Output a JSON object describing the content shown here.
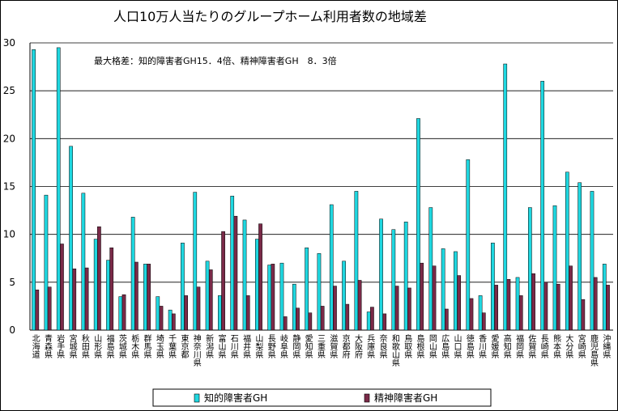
{
  "chart_data": {
    "type": "bar",
    "title": "人口10万人当たりのグループホーム利用者数の地域差",
    "annotation": "最大格差：知的障害者GH15．4倍、精神障害者GH　8．3倍",
    "ylim": [
      0,
      30
    ],
    "yticks": [
      0,
      5,
      10,
      15,
      20,
      25,
      30
    ],
    "grid": true,
    "legend_position": "bottom",
    "colors": {
      "intellectual": "#1fd7e0",
      "mental": "#7a2a48"
    },
    "categories": [
      "北海道",
      "青森県",
      "岩手県",
      "宮城県",
      "秋田県",
      "山形県",
      "福島県",
      "茨城県",
      "栃木県",
      "群馬県",
      "埼玉県",
      "千葉県",
      "東京都",
      "神奈川県",
      "新潟県",
      "富山県",
      "石川県",
      "福井県",
      "山梨県",
      "長野県",
      "岐阜県",
      "静岡県",
      "愛知県",
      "三重県",
      "滋賀県",
      "京都府",
      "大阪府",
      "兵庫県",
      "奈良県",
      "和歌山県",
      "鳥取県",
      "島根県",
      "岡山県",
      "広島県",
      "山口県",
      "徳島県",
      "香川県",
      "愛媛県",
      "高知県",
      "福岡県",
      "佐賀県",
      "長崎県",
      "熊本県",
      "大分県",
      "宮崎県",
      "鹿児島県",
      "沖縄県"
    ],
    "series": [
      {
        "name": "知的障害者GH",
        "values": [
          29.3,
          14.1,
          29.5,
          19.2,
          14.3,
          9.5,
          7.3,
          3.5,
          11.8,
          6.9,
          3.5,
          2.1,
          9.1,
          14.4,
          7.2,
          3.6,
          14.0,
          11.5,
          9.5,
          6.8,
          7.0,
          4.8,
          8.6,
          8.0,
          13.1,
          7.2,
          14.5,
          1.9,
          11.6,
          10.5,
          11.3,
          22.1,
          12.8,
          8.5,
          8.2,
          17.8,
          3.6,
          9.1,
          27.8,
          5.5,
          12.8,
          26.0,
          13.0,
          16.5,
          15.4,
          14.5,
          6.9
        ]
      },
      {
        "name": "精神障害者GH",
        "values": [
          4.2,
          4.5,
          9.0,
          6.4,
          6.5,
          10.8,
          8.6,
          3.7,
          7.1,
          6.9,
          2.5,
          1.7,
          3.6,
          4.5,
          6.3,
          10.3,
          11.9,
          3.6,
          11.1,
          6.9,
          1.4,
          2.3,
          1.8,
          2.5,
          4.6,
          2.7,
          5.2,
          2.4,
          1.7,
          4.6,
          4.4,
          7.0,
          6.7,
          2.2,
          5.7,
          3.3,
          1.8,
          4.7,
          5.3,
          3.6,
          5.9,
          5.0,
          4.8,
          6.7,
          3.2,
          5.5,
          4.7
        ]
      }
    ]
  }
}
